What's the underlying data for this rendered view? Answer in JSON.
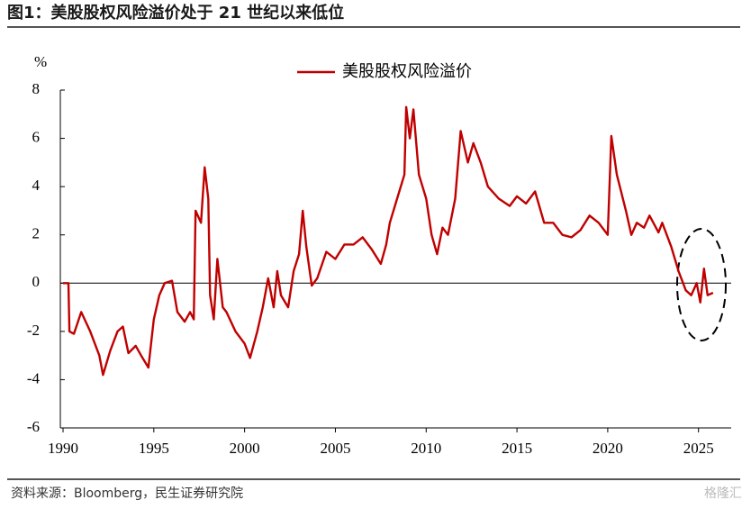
{
  "chart_data": {
    "type": "line",
    "title": "图1：美股股权风险溢价处于 21 世纪以来低位",
    "y_label": "%",
    "source": "资料来源：Bloomberg，民生证券研究院",
    "watermark": "格隆汇",
    "hline": 0,
    "xlim": [
      1990,
      2026.8
    ],
    "xticks": [
      1990,
      1995,
      2000,
      2005,
      2010,
      2015,
      2020,
      2025
    ],
    "ylim": [
      -6,
      8
    ],
    "yticks": [
      -6,
      -4,
      -2,
      0,
      2,
      4,
      6,
      8
    ],
    "legend": "top",
    "x": [
      1990.0,
      1990.3,
      1990.35,
      1990.6,
      1991.0,
      1991.5,
      1992.0,
      1992.2,
      1992.6,
      1993.0,
      1993.3,
      1993.6,
      1994.0,
      1994.3,
      1994.7,
      1995.0,
      1995.3,
      1995.6,
      1996.0,
      1996.3,
      1996.7,
      1997.0,
      1997.2,
      1997.3,
      1997.6,
      1997.8,
      1998.0,
      1998.1,
      1998.3,
      1998.5,
      1998.8,
      1999.0,
      1999.5,
      2000.0,
      2000.3,
      2000.7,
      2001.0,
      2001.3,
      2001.6,
      2001.8,
      2002.0,
      2002.4,
      2002.7,
      2003.0,
      2003.2,
      2003.4,
      2003.7,
      2004.0,
      2004.5,
      2005.0,
      2005.5,
      2006.0,
      2006.5,
      2007.0,
      2007.5,
      2007.8,
      2008.0,
      2008.4,
      2008.8,
      2008.9,
      2009.1,
      2009.3,
      2009.6,
      2010.0,
      2010.3,
      2010.6,
      2010.9,
      2011.2,
      2011.6,
      2011.9,
      2012.3,
      2012.6,
      2013.0,
      2013.4,
      2014.0,
      2014.6,
      2015.0,
      2015.5,
      2016.0,
      2016.5,
      2017.0,
      2017.5,
      2018.0,
      2018.5,
      2019.0,
      2019.5,
      2020.0,
      2020.2,
      2020.5,
      2021.0,
      2021.3,
      2021.6,
      2022.0,
      2022.3,
      2022.8,
      2023.0,
      2023.5,
      2023.9,
      2024.3,
      2024.6,
      2024.9,
      2025.1,
      2025.3,
      2025.5,
      2025.8
    ],
    "series": [
      {
        "name": "美股股权风险溢价",
        "color": "#c00000",
        "values": [
          0,
          0,
          -2.0,
          -2.1,
          -1.2,
          -2.0,
          -3.0,
          -3.8,
          -2.8,
          -2.0,
          -1.8,
          -2.9,
          -2.6,
          -3.0,
          -3.5,
          -1.5,
          -0.5,
          0.0,
          0.1,
          -1.2,
          -1.6,
          -1.2,
          -1.5,
          3.0,
          2.5,
          4.8,
          3.5,
          -0.5,
          -1.5,
          1.0,
          -1.0,
          -1.2,
          -2.0,
          -2.5,
          -3.1,
          -2.0,
          -1.0,
          0.2,
          -1.0,
          0.5,
          -0.5,
          -1.0,
          0.5,
          1.2,
          3.0,
          1.5,
          -0.1,
          0.2,
          1.3,
          1.0,
          1.6,
          1.6,
          1.9,
          1.4,
          0.8,
          1.6,
          2.5,
          3.5,
          4.5,
          7.3,
          6.0,
          7.2,
          4.5,
          3.5,
          2.0,
          1.2,
          2.3,
          2.0,
          3.5,
          6.3,
          5.0,
          5.8,
          5.0,
          4.0,
          3.5,
          3.2,
          3.6,
          3.3,
          3.8,
          2.5,
          2.5,
          2.0,
          1.9,
          2.2,
          2.8,
          2.5,
          2.0,
          6.1,
          4.5,
          3.0,
          2.0,
          2.5,
          2.3,
          2.8,
          2.1,
          2.5,
          1.5,
          0.5,
          -0.3,
          -0.5,
          0.0,
          -0.8,
          0.6,
          -0.5,
          -0.4
        ]
      }
    ]
  }
}
